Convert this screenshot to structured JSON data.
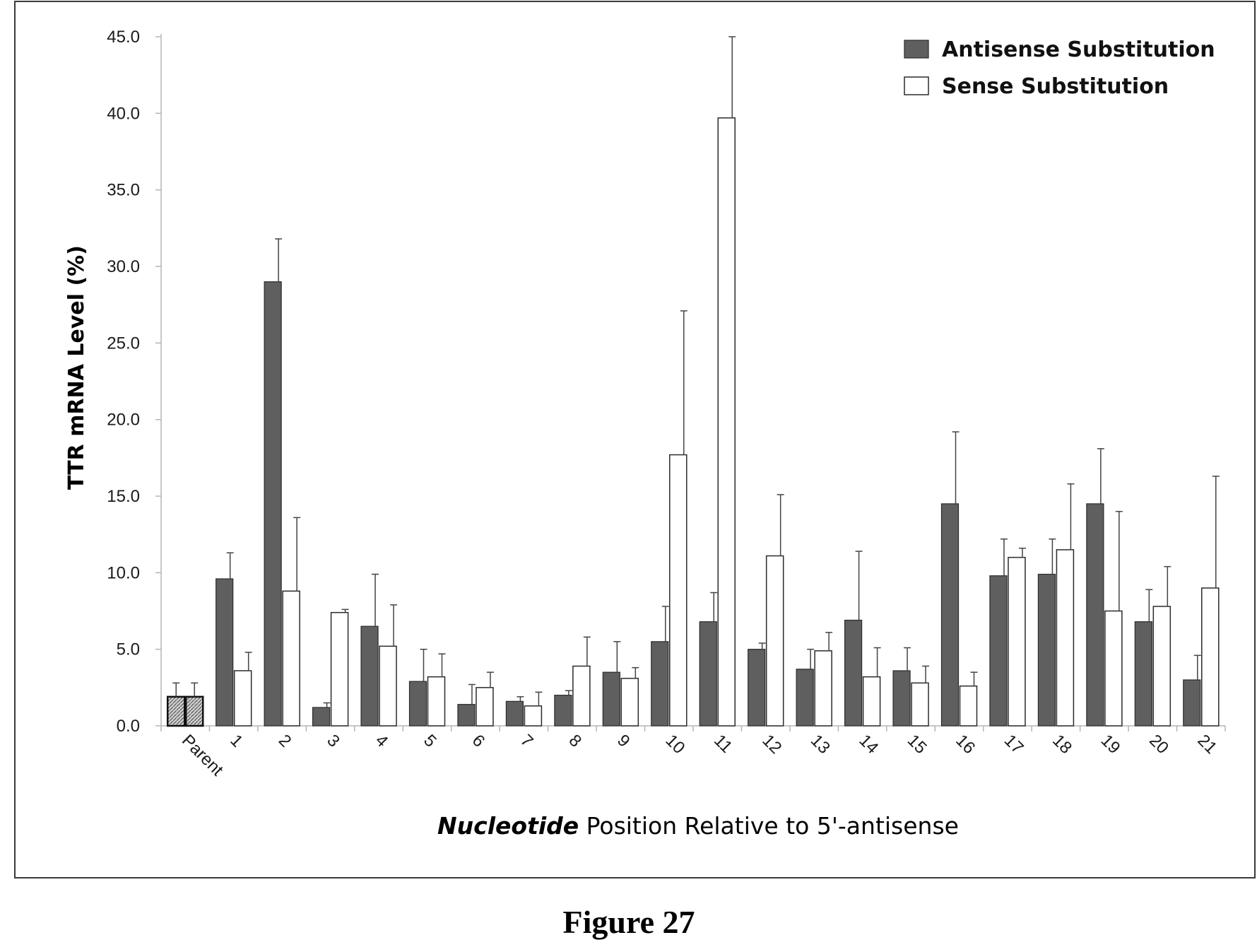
{
  "caption": "Figure 27",
  "colors": {
    "antisense": "#5f5f5f",
    "sense": "#ffffff",
    "parent": "#a0a0a0"
  },
  "chart_data": {
    "type": "bar",
    "ylabel": "TTR mRNA Level (%)",
    "xlabel_italic": "Nucleotide",
    "xlabel_rest": " Position Relative to 5'-antisense",
    "ylim": [
      0,
      45
    ],
    "yticks": [
      "0.0",
      "5.0",
      "10.0",
      "15.0",
      "20.0",
      "25.0",
      "30.0",
      "35.0",
      "40.0",
      "45.0"
    ],
    "legend_position": "top-right",
    "categories": [
      "Parent",
      "1",
      "2",
      "3",
      "4",
      "5",
      "6",
      "7",
      "8",
      "9",
      "10",
      "11",
      "12",
      "13",
      "14",
      "15",
      "16",
      "17",
      "18",
      "19",
      "20",
      "21"
    ],
    "series": [
      {
        "name": "Antisense Substitution",
        "values": [
          1.9,
          9.6,
          29.0,
          1.2,
          6.5,
          2.9,
          1.4,
          1.6,
          2.0,
          3.5,
          5.5,
          6.8,
          5.0,
          3.7,
          6.9,
          3.6,
          14.5,
          9.8,
          9.9,
          14.5,
          6.8,
          3.0
        ],
        "errors": [
          0.9,
          1.7,
          2.8,
          0.3,
          3.4,
          2.1,
          1.3,
          0.3,
          0.3,
          2.0,
          2.3,
          1.9,
          0.4,
          1.3,
          4.5,
          1.5,
          4.7,
          2.4,
          2.3,
          3.6,
          2.1,
          1.6
        ]
      },
      {
        "name": "Sense Substitution",
        "values": [
          1.9,
          3.6,
          8.8,
          7.4,
          5.2,
          3.2,
          2.5,
          1.3,
          3.9,
          3.1,
          17.7,
          39.7,
          11.1,
          4.9,
          3.2,
          2.8,
          2.6,
          11.0,
          11.5,
          7.5,
          7.8,
          9.0
        ],
        "errors": [
          0.9,
          1.2,
          4.8,
          0.2,
          2.7,
          1.5,
          1.0,
          0.9,
          1.9,
          0.7,
          9.4,
          5.3,
          4.0,
          1.2,
          1.9,
          1.1,
          0.9,
          0.6,
          4.3,
          6.5,
          2.6,
          7.3
        ]
      }
    ]
  }
}
